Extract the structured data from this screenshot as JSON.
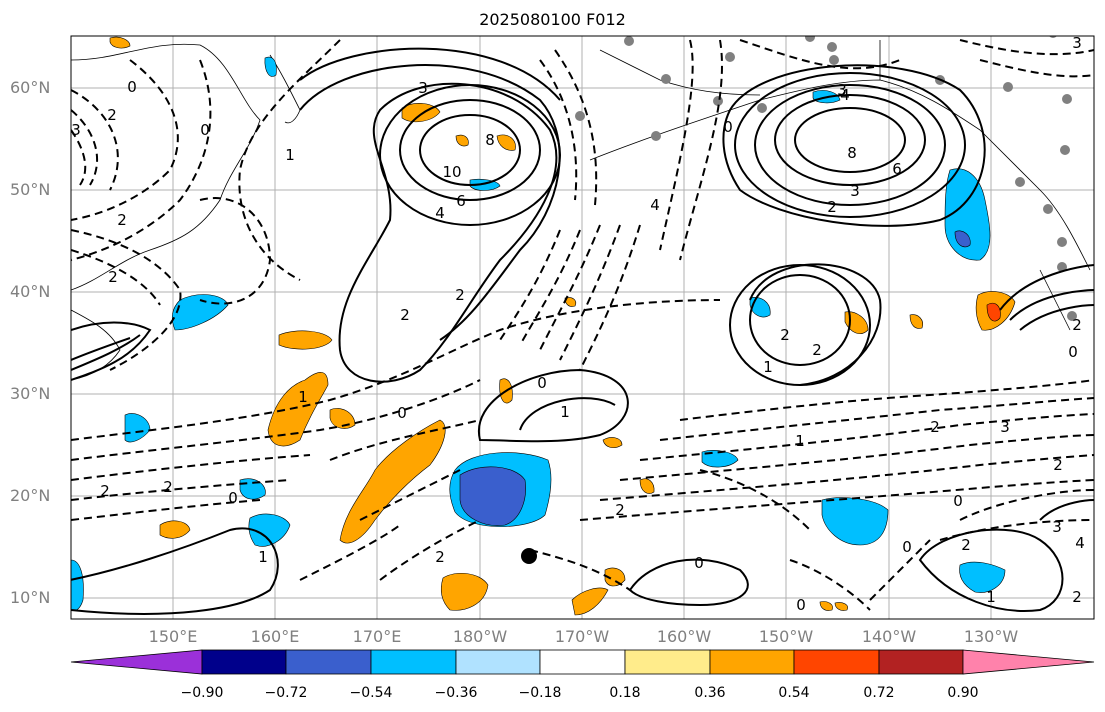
{
  "title": "2025080100 F012",
  "lat_labels": [
    "60°N",
    "50°N",
    "40°N",
    "30°N",
    "20°N",
    "10°N"
  ],
  "lon_labels": [
    "150°E",
    "160°E",
    "170°E",
    "180°W",
    "170°W",
    "160°W",
    "150°W",
    "140°W",
    "130°W"
  ],
  "colorbar": {
    "ticks": [
      "−0.90",
      "−0.72",
      "−0.54",
      "−0.36",
      "−0.18",
      "0.18",
      "0.36",
      "0.54",
      "0.72",
      "0.90"
    ],
    "colors": [
      "#9b30d9",
      "#00008b",
      "#3a5fcd",
      "#00bfff",
      "#b0e2ff",
      "#ffffff",
      "#ffec8b",
      "#ffa500",
      "#ff4500",
      "#b22222",
      "#ff82ab"
    ]
  },
  "contour_labels": [
    {
      "t": "0"
    },
    {
      "t": "3"
    },
    {
      "t": "2"
    },
    {
      "t": "0"
    },
    {
      "t": "1"
    },
    {
      "t": "2"
    },
    {
      "t": "2"
    },
    {
      "t": "3"
    },
    {
      "t": "8"
    },
    {
      "t": "10"
    },
    {
      "t": "6"
    },
    {
      "t": "4"
    },
    {
      "t": "2"
    },
    {
      "t": "2"
    },
    {
      "t": "3"
    },
    {
      "t": "8"
    },
    {
      "t": "6"
    },
    {
      "t": "3"
    },
    {
      "t": "2"
    },
    {
      "t": "4"
    },
    {
      "t": "4"
    },
    {
      "t": "0"
    },
    {
      "t": "1"
    },
    {
      "t": "2"
    },
    {
      "t": "2"
    },
    {
      "t": "1"
    },
    {
      "t": "0"
    },
    {
      "t": "1"
    },
    {
      "t": "0"
    },
    {
      "t": "2"
    },
    {
      "t": "0"
    },
    {
      "t": "1"
    },
    {
      "t": "2"
    },
    {
      "t": "2"
    },
    {
      "t": "2"
    },
    {
      "t": "3"
    },
    {
      "t": "2"
    },
    {
      "t": "0"
    },
    {
      "t": "0"
    },
    {
      "t": "2"
    },
    {
      "t": "3"
    },
    {
      "t": "4"
    },
    {
      "t": "1"
    },
    {
      "t": "0"
    },
    {
      "t": "0"
    },
    {
      "t": "2"
    },
    {
      "t": "3"
    },
    {
      "t": "2"
    },
    {
      "t": "1"
    },
    {
      "t": "2"
    },
    {
      "t": "0"
    }
  ]
}
